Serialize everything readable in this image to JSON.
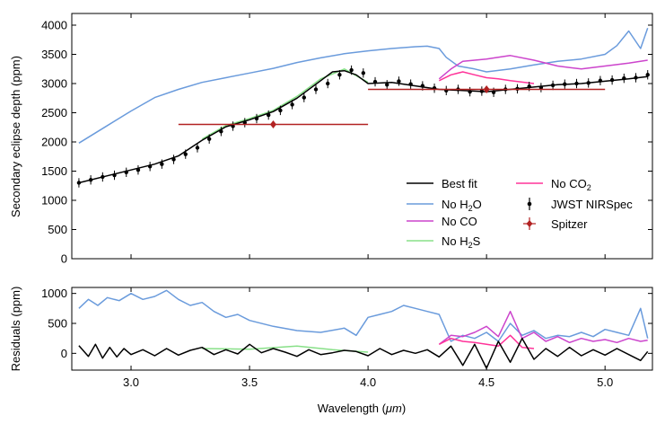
{
  "chart_data": [
    {
      "type": "line",
      "panel": "top",
      "xlabel": "",
      "ylabel": "Secondary eclipse depth (ppm)",
      "xlim": [
        2.75,
        5.2
      ],
      "ylim": [
        0,
        4200
      ],
      "yticks": [
        0,
        500,
        1000,
        1500,
        2000,
        2500,
        3000,
        3500,
        4000
      ],
      "ytick_labels": [
        "0",
        "500",
        "1000",
        "1500",
        "2000",
        "2500",
        "3000",
        "3500",
        "4000"
      ],
      "grid": false,
      "legend_position": "lower-right",
      "series": [
        {
          "name": "Best fit",
          "color": "#000000",
          "x": [
            2.78,
            2.9,
            3.0,
            3.1,
            3.2,
            3.3,
            3.4,
            3.5,
            3.6,
            3.7,
            3.8,
            3.85,
            3.9,
            3.95,
            4.0,
            4.1,
            4.2,
            4.3,
            4.4,
            4.5,
            4.6,
            4.7,
            4.8,
            4.9,
            5.0,
            5.1,
            5.18
          ],
          "y": [
            1300,
            1420,
            1520,
            1620,
            1760,
            2030,
            2260,
            2380,
            2520,
            2750,
            3050,
            3200,
            3220,
            3150,
            3000,
            3020,
            2960,
            2900,
            2880,
            2860,
            2900,
            2940,
            2980,
            3000,
            3040,
            3080,
            3120
          ]
        },
        {
          "name": "No H2O",
          "color": "#6a9bdc",
          "x": [
            2.78,
            2.9,
            3.0,
            3.1,
            3.2,
            3.3,
            3.4,
            3.5,
            3.6,
            3.7,
            3.8,
            3.9,
            4.0,
            4.1,
            4.2,
            4.25,
            4.3,
            4.33,
            4.38,
            4.45,
            4.5,
            4.6,
            4.7,
            4.8,
            4.9,
            5.0,
            5.05,
            5.1,
            5.15,
            5.18
          ],
          "y": [
            1980,
            2280,
            2530,
            2760,
            2900,
            3020,
            3100,
            3180,
            3260,
            3360,
            3440,
            3510,
            3560,
            3600,
            3630,
            3640,
            3600,
            3450,
            3300,
            3250,
            3200,
            3250,
            3320,
            3380,
            3420,
            3500,
            3650,
            3900,
            3600,
            3950
          ]
        },
        {
          "name": "No CO",
          "color": "#cc44cc",
          "x": [
            4.3,
            4.35,
            4.4,
            4.45,
            4.5,
            4.55,
            4.6,
            4.7,
            4.8,
            4.9,
            5.0,
            5.1,
            5.18
          ],
          "y": [
            3080,
            3250,
            3380,
            3400,
            3420,
            3450,
            3480,
            3400,
            3300,
            3250,
            3300,
            3350,
            3400
          ]
        },
        {
          "name": "No H2S",
          "color": "#88e088",
          "x": [
            3.3,
            3.4,
            3.5,
            3.6,
            3.7,
            3.8,
            3.9,
            4.0
          ],
          "y": [
            2050,
            2280,
            2400,
            2540,
            2780,
            3080,
            3250,
            3020
          ]
        },
        {
          "name": "No CO2",
          "color": "#ff3399",
          "x": [
            4.3,
            4.35,
            4.4,
            4.45,
            4.5,
            4.55,
            4.6,
            4.7
          ],
          "y": [
            3050,
            3150,
            3200,
            3150,
            3100,
            3080,
            3050,
            3000
          ]
        },
        {
          "name": "JWST NIRSpec",
          "color": "#000000",
          "x": [
            2.78,
            2.83,
            2.88,
            2.93,
            2.98,
            3.03,
            3.08,
            3.13,
            3.18,
            3.23,
            3.28,
            3.33,
            3.38,
            3.43,
            3.48,
            3.53,
            3.58,
            3.63,
            3.68,
            3.73,
            3.78,
            3.83,
            3.88,
            3.93,
            3.98,
            4.03,
            4.08,
            4.13,
            4.18,
            4.23,
            4.28,
            4.33,
            4.38,
            4.43,
            4.48,
            4.53,
            4.58,
            4.63,
            4.68,
            4.73,
            4.78,
            4.83,
            4.88,
            4.93,
            4.98,
            5.03,
            5.08,
            5.13,
            5.18
          ],
          "y": [
            1300,
            1350,
            1400,
            1430,
            1480,
            1520,
            1580,
            1620,
            1700,
            1790,
            1900,
            2050,
            2180,
            2270,
            2330,
            2400,
            2460,
            2540,
            2640,
            2760,
            2900,
            3000,
            3150,
            3230,
            3180,
            3030,
            2980,
            3040,
            2990,
            2960,
            2920,
            2880,
            2900,
            2860,
            2870,
            2850,
            2900,
            2910,
            2950,
            2930,
            2970,
            2990,
            3000,
            3010,
            3050,
            3060,
            3090,
            3100,
            3150
          ],
          "yerr": 80
        },
        {
          "name": "Spitzer",
          "color": "#b22222",
          "x": [
            3.6,
            4.5
          ],
          "xerr_low": [
            0.4,
            0.5
          ],
          "xerr_high": [
            0.4,
            0.5
          ],
          "y": [
            2300,
            2900
          ],
          "yerr": [
            40,
            40
          ]
        }
      ],
      "legend": [
        {
          "text": "Best fit",
          "sub": "",
          "tail": ""
        },
        {
          "text": "No H",
          "sub": "2",
          "tail": "O"
        },
        {
          "text": "No CO",
          "sub": "",
          "tail": ""
        },
        {
          "text": "No H",
          "sub": "2",
          "tail": "S"
        },
        {
          "text": "No CO",
          "sub": "2",
          "tail": ""
        },
        {
          "text": "JWST NIRSpec",
          "sub": "",
          "tail": ""
        },
        {
          "text": "Spitzer",
          "sub": "",
          "tail": ""
        }
      ]
    },
    {
      "type": "line",
      "panel": "bottom",
      "xlabel_prefix": "Wavelength (",
      "xlabel_unit": "μm",
      "xlabel_suffix": ")",
      "ylabel": "Residuals (ppm)",
      "xlim": [
        2.75,
        5.2
      ],
      "ylim": [
        -280,
        1100
      ],
      "xticks": [
        3.0,
        3.5,
        4.0,
        4.5,
        5.0
      ],
      "xtick_labels": [
        "3.0",
        "3.5",
        "4.0",
        "4.5",
        "5.0"
      ],
      "yticks": [
        0,
        500,
        1000
      ],
      "ytick_labels": [
        "0",
        "500",
        "1000"
      ],
      "series": [
        {
          "name": "No H2O",
          "color": "#6a9bdc",
          "x": [
            2.78,
            2.82,
            2.86,
            2.9,
            2.95,
            3.0,
            3.05,
            3.1,
            3.15,
            3.2,
            3.25,
            3.3,
            3.35,
            3.4,
            3.45,
            3.5,
            3.6,
            3.7,
            3.8,
            3.9,
            3.95,
            4.0,
            4.05,
            4.1,
            4.15,
            4.2,
            4.25,
            4.3,
            4.35,
            4.4,
            4.45,
            4.5,
            4.55,
            4.6,
            4.65,
            4.7,
            4.75,
            4.8,
            4.85,
            4.9,
            4.95,
            5.0,
            5.05,
            5.1,
            5.15,
            5.18
          ],
          "y": [
            750,
            900,
            800,
            930,
            880,
            1000,
            900,
            950,
            1050,
            900,
            800,
            850,
            700,
            600,
            650,
            550,
            450,
            380,
            350,
            420,
            300,
            600,
            650,
            700,
            800,
            750,
            700,
            650,
            200,
            300,
            250,
            350,
            200,
            500,
            300,
            380,
            250,
            300,
            280,
            350,
            280,
            400,
            350,
            300,
            750,
            250
          ]
        },
        {
          "name": "No CO",
          "color": "#cc44cc",
          "x": [
            4.3,
            4.35,
            4.4,
            4.45,
            4.5,
            4.55,
            4.6,
            4.65,
            4.7,
            4.75,
            4.8,
            4.85,
            4.9,
            4.95,
            5.0,
            5.05,
            5.1,
            5.15,
            5.18
          ],
          "y": [
            150,
            300,
            280,
            350,
            450,
            280,
            700,
            250,
            350,
            200,
            280,
            180,
            250,
            200,
            230,
            180,
            250,
            200,
            220
          ]
        },
        {
          "name": "No CO2",
          "color": "#ff3399",
          "x": [
            4.3,
            4.35,
            4.4,
            4.45,
            4.5,
            4.55,
            4.6,
            4.65,
            4.7
          ],
          "y": [
            150,
            250,
            200,
            180,
            150,
            120,
            300,
            100,
            80
          ]
        },
        {
          "name": "No H2S",
          "color": "#88e088",
          "x": [
            3.3,
            3.5,
            3.7,
            3.85,
            4.0
          ],
          "y": [
            80,
            70,
            120,
            60,
            20
          ]
        },
        {
          "name": "Best fit",
          "color": "#000000",
          "x": [
            2.78,
            2.82,
            2.85,
            2.88,
            2.91,
            2.94,
            2.97,
            3.0,
            3.05,
            3.1,
            3.15,
            3.2,
            3.25,
            3.3,
            3.35,
            3.4,
            3.45,
            3.5,
            3.55,
            3.6,
            3.65,
            3.7,
            3.75,
            3.8,
            3.85,
            3.9,
            3.95,
            4.0,
            4.05,
            4.1,
            4.15,
            4.2,
            4.25,
            4.3,
            4.35,
            4.4,
            4.45,
            4.5,
            4.55,
            4.6,
            4.65,
            4.7,
            4.75,
            4.8,
            4.85,
            4.9,
            4.95,
            5.0,
            5.05,
            5.1,
            5.15,
            5.18
          ],
          "y": [
            130,
            -50,
            150,
            -80,
            100,
            -60,
            80,
            -20,
            60,
            -40,
            80,
            -30,
            50,
            100,
            -20,
            60,
            -10,
            150,
            10,
            80,
            20,
            -50,
            60,
            -20,
            10,
            50,
            30,
            -40,
            80,
            -20,
            50,
            0,
            60,
            -60,
            120,
            -200,
            150,
            -250,
            200,
            -150,
            250,
            -100,
            80,
            -50,
            100,
            -40,
            60,
            -30,
            80,
            -20,
            -120,
            30
          ]
        }
      ]
    }
  ]
}
